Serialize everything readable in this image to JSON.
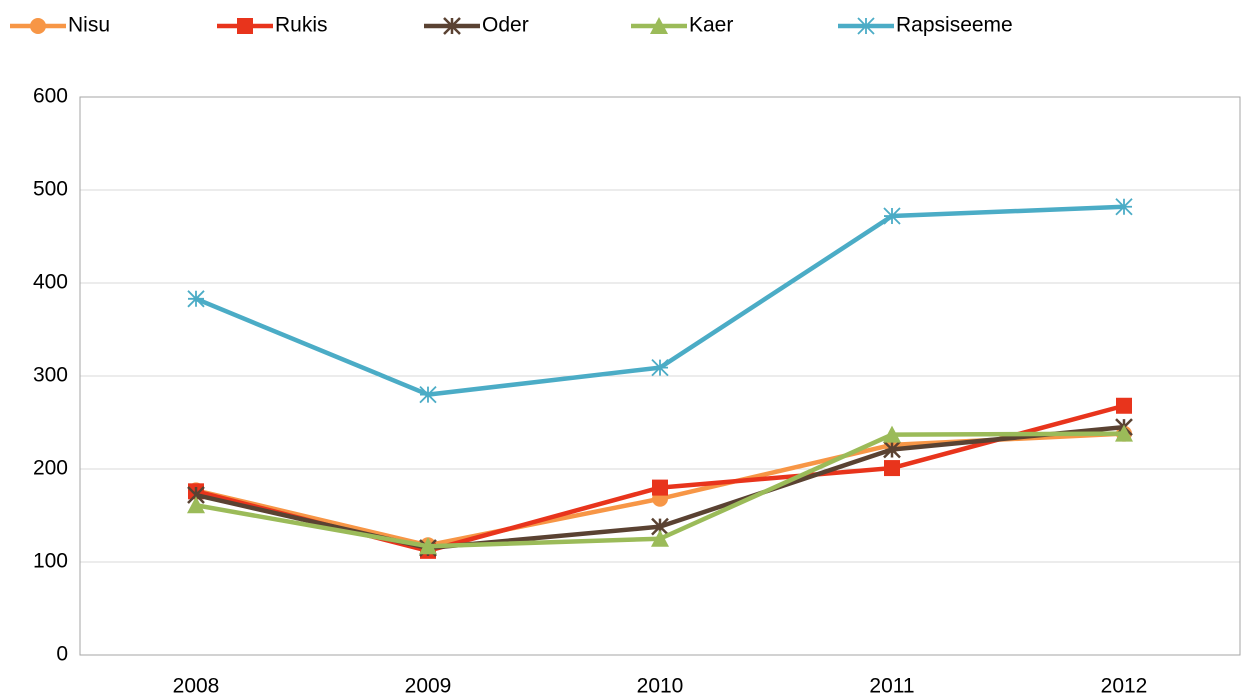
{
  "chart_data": {
    "type": "line",
    "categories": [
      "2008",
      "2009",
      "2010",
      "2011",
      "2012"
    ],
    "series": [
      {
        "name": "Nisu",
        "color": "#f79646",
        "marker": "circle",
        "values": [
          177,
          118,
          168,
          226,
          238
        ]
      },
      {
        "name": "Rukis",
        "color": "#e8341c",
        "marker": "square",
        "values": [
          176,
          112,
          180,
          201,
          268
        ]
      },
      {
        "name": "Oder",
        "color": "#5a4232",
        "marker": "x-star",
        "values": [
          172,
          115,
          138,
          221,
          245
        ]
      },
      {
        "name": "Kaer",
        "color": "#9bbb59",
        "marker": "triangle",
        "values": [
          161,
          117,
          125,
          237,
          238
        ]
      },
      {
        "name": "Rapsiseeme",
        "color": "#4bacc6",
        "marker": "star",
        "values": [
          383,
          280,
          309,
          472,
          482
        ]
      }
    ],
    "ylim": [
      0,
      600
    ],
    "yticks": [
      0,
      100,
      200,
      300,
      400,
      500,
      600
    ],
    "grid": true,
    "legend": "top"
  }
}
